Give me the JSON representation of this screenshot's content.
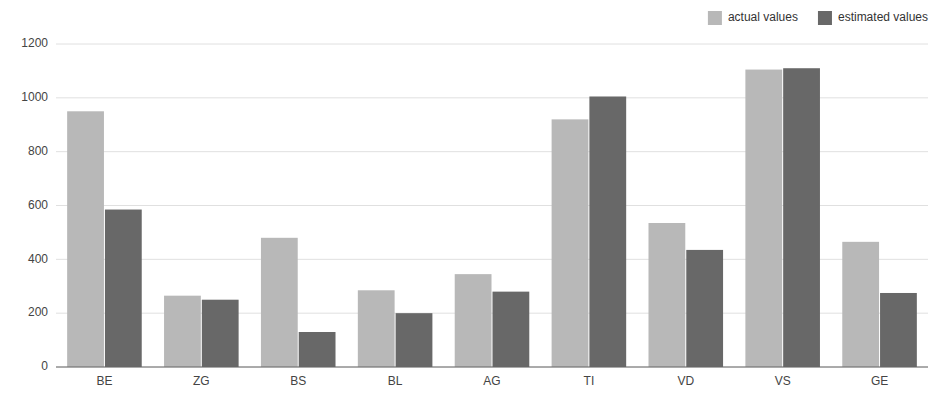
{
  "chart_data": {
    "type": "bar",
    "categories": [
      "BE",
      "ZG",
      "BS",
      "BL",
      "AG",
      "TI",
      "VD",
      "VS",
      "GE"
    ],
    "series": [
      {
        "name": "actual values",
        "color": "#b8b8b8",
        "values": [
          950,
          265,
          480,
          285,
          345,
          920,
          535,
          1105,
          465
        ]
      },
      {
        "name": "estimated values",
        "color": "#686868",
        "values": [
          585,
          250,
          130,
          200,
          280,
          1005,
          435,
          1110,
          275
        ]
      }
    ],
    "ylim": [
      0,
      1200
    ],
    "yticks": [
      0,
      200,
      400,
      600,
      800,
      1000,
      1200
    ],
    "grid": true,
    "legend": "upper right"
  }
}
